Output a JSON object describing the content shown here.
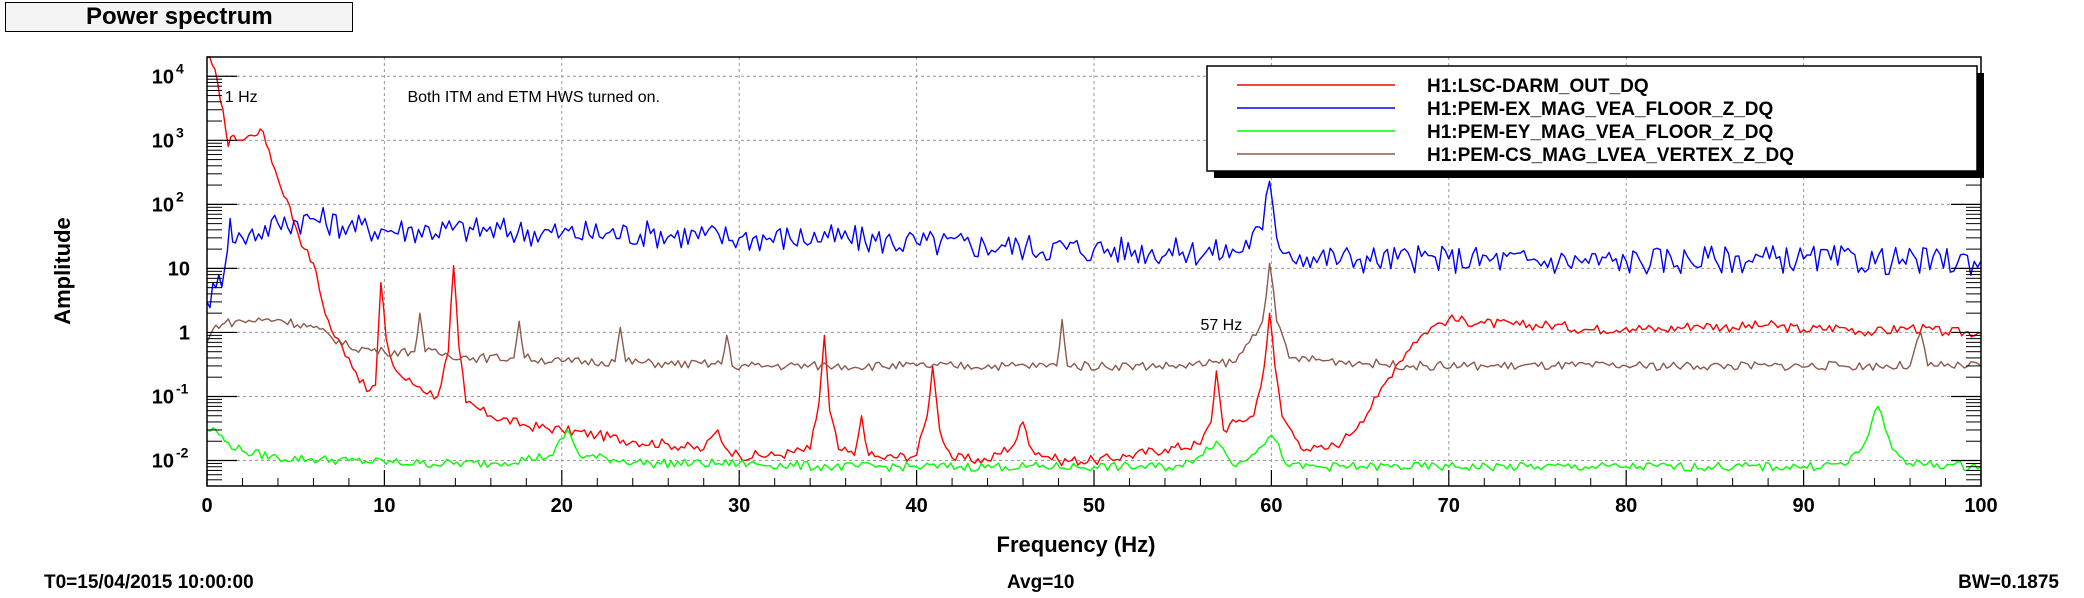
{
  "panel_title": "Power spectrum",
  "footer": {
    "t0": "T0=15/04/2015 10:00:00",
    "avg": "Avg=10",
    "bw": "BW=0.1875"
  },
  "chart_data": {
    "type": "line",
    "xlabel": "Frequency (Hz)",
    "ylabel": "Amplitude",
    "xlim": [
      0,
      100
    ],
    "ylim": [
      0.004,
      20000
    ],
    "yscale": "log",
    "grid": true,
    "legend_position": "top-right",
    "x_ticks": [
      0,
      10,
      20,
      30,
      40,
      50,
      60,
      70,
      80,
      90,
      100
    ],
    "y_ticks": [
      {
        "value": 0.01,
        "base": "10",
        "exp": "-2"
      },
      {
        "value": 0.1,
        "base": "10",
        "exp": "-1"
      },
      {
        "value": 1,
        "base": "1",
        "exp": ""
      },
      {
        "value": 10,
        "base": "10",
        "exp": ""
      },
      {
        "value": 100,
        "base": "10",
        "exp": "2"
      },
      {
        "value": 1000,
        "base": "10",
        "exp": "3"
      },
      {
        "value": 10000,
        "base": "10",
        "exp": "4"
      }
    ],
    "annotations": [
      {
        "text": "1 Hz",
        "x": 1,
        "y": 4000
      },
      {
        "text": "Both ITM and ETM HWS turned on.",
        "x": 11.3,
        "y": 4000
      },
      {
        "text": "57 Hz",
        "x": 56,
        "y": 1.1
      }
    ],
    "series": [
      {
        "name": "H1:LSC-DARM_OUT_DQ",
        "color": "#ff0000",
        "x": [
          0,
          0.3,
          0.6,
          0.9,
          1.2,
          1.5,
          2,
          2.5,
          3,
          3.5,
          4,
          4.5,
          5,
          5.5,
          6,
          6.5,
          7,
          8,
          9,
          9.5,
          9.8,
          10.1,
          10.5,
          11,
          12,
          13,
          13.6,
          13.9,
          14.2,
          14.6,
          16,
          18,
          20,
          22,
          24,
          26,
          28,
          28.8,
          29.2,
          30,
          32,
          34,
          34.5,
          34.8,
          35.1,
          35.6,
          36.5,
          36.9,
          37.3,
          38,
          40,
          40.6,
          40.9,
          41.3,
          42,
          44,
          45.5,
          46,
          46.5,
          48,
          50,
          52,
          54,
          56,
          56.6,
          56.9,
          57.3,
          58,
          59,
          59.6,
          59.9,
          60.2,
          60.6,
          61.5,
          62,
          63,
          64,
          65,
          66,
          67,
          68,
          69,
          70,
          72,
          74,
          76,
          78,
          80,
          82,
          84,
          86,
          88,
          90,
          92,
          94,
          96,
          98,
          100
        ],
        "y": [
          20000,
          15000,
          8000,
          3000,
          800,
          1200,
          1000,
          1200,
          1500,
          700,
          250,
          120,
          45,
          20,
          12,
          3,
          1.1,
          0.4,
          0.12,
          0.15,
          6,
          0.8,
          0.3,
          0.2,
          0.14,
          0.1,
          0.5,
          11,
          0.6,
          0.08,
          0.05,
          0.035,
          0.03,
          0.025,
          0.02,
          0.018,
          0.015,
          0.03,
          0.016,
          0.012,
          0.012,
          0.015,
          0.08,
          0.9,
          0.06,
          0.015,
          0.012,
          0.05,
          0.012,
          0.011,
          0.012,
          0.05,
          0.3,
          0.03,
          0.011,
          0.01,
          0.018,
          0.04,
          0.015,
          0.01,
          0.01,
          0.012,
          0.015,
          0.018,
          0.04,
          0.25,
          0.03,
          0.04,
          0.05,
          0.3,
          2,
          0.3,
          0.05,
          0.02,
          0.015,
          0.015,
          0.02,
          0.04,
          0.1,
          0.3,
          0.7,
          1.2,
          1.6,
          1.4,
          1.3,
          1.3,
          1.1,
          1.2,
          1.1,
          1.3,
          1.2,
          1.3,
          1.1,
          1.2,
          1.0,
          1.2,
          1.0,
          1.0
        ]
      },
      {
        "name": "H1:PEM-EX_MAG_VEA_FLOOR_Z_DQ",
        "color": "#0000ff",
        "x": [
          0,
          0.5,
          1,
          1.3,
          1.6,
          2,
          4,
          6,
          8,
          10,
          15,
          20,
          25,
          30,
          35,
          40,
          45,
          50,
          55,
          58,
          59.5,
          59.9,
          60.3,
          61,
          62,
          65,
          70,
          75,
          80,
          85,
          90,
          95,
          100
        ],
        "y": [
          3,
          5,
          10,
          60,
          25,
          30,
          50,
          60,
          45,
          40,
          40,
          35,
          35,
          30,
          30,
          25,
          22,
          20,
          18,
          18,
          40,
          230,
          30,
          18,
          15,
          14,
          14,
          13,
          13,
          14,
          14,
          13,
          13
        ]
      },
      {
        "name": "H1:PEM-EY_MAG_VEA_FLOOR_Z_DQ",
        "color": "#00ff00",
        "x": [
          0,
          0.5,
          1,
          2,
          4,
          8,
          12,
          16,
          19.5,
          20.3,
          21,
          25,
          30,
          35,
          40,
          45,
          50,
          55,
          56.9,
          58,
          60,
          61,
          65,
          70,
          75,
          80,
          85,
          90,
          92.5,
          93.5,
          94.2,
          95,
          96,
          100
        ],
        "y": [
          0.03,
          0.03,
          0.02,
          0.014,
          0.011,
          0.01,
          0.009,
          0.009,
          0.012,
          0.03,
          0.012,
          0.009,
          0.009,
          0.008,
          0.008,
          0.008,
          0.008,
          0.008,
          0.02,
          0.008,
          0.025,
          0.008,
          0.008,
          0.008,
          0.008,
          0.008,
          0.008,
          0.008,
          0.009,
          0.02,
          0.07,
          0.015,
          0.009,
          0.008
        ]
      },
      {
        "name": "H1:PEM-CS_MAG_LVEA_VERTEX_Z_DQ",
        "color": "#8b5a4b",
        "x": [
          0,
          0.5,
          1,
          2,
          4,
          6,
          8,
          10,
          11.7,
          12,
          12.3,
          15,
          17.3,
          17.6,
          17.9,
          20,
          23,
          23.3,
          23.6,
          26,
          29,
          29.3,
          29.6,
          32,
          35,
          40,
          45,
          47.9,
          48.2,
          48.5,
          52,
          55,
          58,
          59.5,
          59.9,
          60.3,
          61,
          64,
          68,
          72,
          76,
          80,
          84,
          88,
          92,
          96,
          96.6,
          97,
          100
        ],
        "y": [
          0.7,
          1.3,
          1.4,
          1.5,
          1.6,
          1.2,
          0.6,
          0.5,
          0.5,
          2,
          0.5,
          0.4,
          0.4,
          1.5,
          0.4,
          0.35,
          0.35,
          1.2,
          0.35,
          0.32,
          0.32,
          0.9,
          0.3,
          0.3,
          0.3,
          0.3,
          0.3,
          0.3,
          1.6,
          0.3,
          0.3,
          0.3,
          0.35,
          1.5,
          12,
          1.5,
          0.4,
          0.35,
          0.3,
          0.3,
          0.3,
          0.3,
          0.3,
          0.3,
          0.3,
          0.3,
          1.0,
          0.3,
          0.3
        ]
      }
    ]
  }
}
